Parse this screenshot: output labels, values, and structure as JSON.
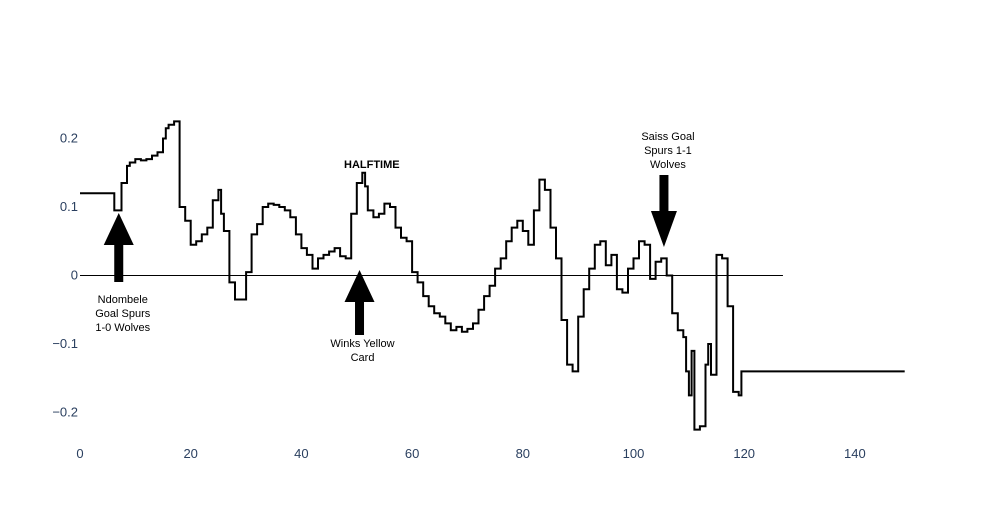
{
  "chart_data": {
    "type": "line",
    "line_shape": "step",
    "title": "",
    "xlabel": "",
    "ylabel": "",
    "xlim": [
      0,
      150
    ],
    "ylim": [
      -0.25,
      0.3
    ],
    "x_ticks": [
      0,
      20,
      40,
      60,
      80,
      100,
      120,
      140
    ],
    "x_tick_labels": [
      "0",
      "20",
      "40",
      "60",
      "80",
      "100",
      "120",
      "140"
    ],
    "y_ticks": [
      -0.2,
      -0.1,
      0,
      0.1,
      0.2
    ],
    "y_tick_labels": [
      "−0.2",
      "−0.1",
      "0",
      "0.1",
      "0.2"
    ],
    "grid": false,
    "line_color": "#000000",
    "zero_line": {
      "y": 0,
      "x_end": 127
    },
    "series": [
      {
        "x": [
          0,
          6,
          6.2,
          7,
          7.5,
          8,
          8.5,
          9,
          10,
          11,
          12,
          13,
          14,
          15,
          15.5,
          16,
          17,
          18,
          19,
          20,
          21,
          22,
          23,
          24,
          25,
          25.5,
          26,
          27,
          28,
          29,
          30,
          31,
          32,
          33,
          34,
          35,
          36,
          37,
          38,
          39,
          40,
          41,
          42,
          43,
          44,
          45,
          46,
          47,
          48,
          49,
          50,
          51,
          51.5,
          52,
          53,
          54,
          55,
          56,
          57,
          58,
          59,
          60,
          61,
          62,
          63,
          64,
          65,
          66,
          67,
          68,
          69,
          70,
          71,
          72,
          73,
          74,
          75,
          76,
          77,
          78,
          79,
          80,
          81,
          82,
          83,
          84,
          85,
          86,
          87,
          88,
          89,
          90,
          91,
          92,
          93,
          94,
          95,
          96,
          97,
          98,
          99,
          100,
          101,
          102,
          103,
          104,
          105,
          106,
          107,
          108,
          109,
          109.5,
          110,
          110.5,
          111,
          112,
          113,
          113.5,
          114,
          115,
          116,
          117,
          118,
          119,
          119.5,
          120,
          149
        ],
        "y": [
          0.12,
          0.12,
          0.095,
          0.095,
          0.135,
          0.135,
          0.16,
          0.165,
          0.17,
          0.168,
          0.17,
          0.175,
          0.18,
          0.2,
          0.215,
          0.22,
          0.225,
          0.1,
          0.08,
          0.045,
          0.05,
          0.06,
          0.07,
          0.11,
          0.125,
          0.09,
          0.065,
          -0.01,
          -0.035,
          -0.035,
          0.005,
          0.06,
          0.075,
          0.1,
          0.105,
          0.103,
          0.1,
          0.095,
          0.085,
          0.06,
          0.04,
          0.03,
          0.01,
          0.025,
          0.03,
          0.035,
          0.04,
          0.028,
          0.025,
          0.09,
          0.135,
          0.15,
          0.13,
          0.095,
          0.085,
          0.09,
          0.105,
          0.1,
          0.07,
          0.055,
          0.05,
          0.005,
          -0.01,
          -0.03,
          -0.045,
          -0.055,
          -0.06,
          -0.07,
          -0.08,
          -0.075,
          -0.082,
          -0.078,
          -0.07,
          -0.05,
          -0.03,
          -0.015,
          0.01,
          0.025,
          0.05,
          0.07,
          0.08,
          0.065,
          0.045,
          0.095,
          0.14,
          0.125,
          0.07,
          0.025,
          -0.065,
          -0.13,
          -0.14,
          -0.06,
          -0.02,
          0.01,
          0.045,
          0.05,
          0.015,
          0.03,
          -0.02,
          -0.025,
          0.01,
          0.025,
          0.05,
          0.045,
          -0.005,
          0.02,
          0.025,
          0.0,
          -0.055,
          -0.08,
          -0.09,
          -0.14,
          -0.175,
          -0.11,
          -0.225,
          -0.22,
          -0.13,
          -0.1,
          -0.145,
          0.03,
          0.025,
          -0.045,
          -0.17,
          -0.175,
          -0.14,
          -0.14,
          -0.14
        ]
      }
    ],
    "annotations": [
      {
        "text_lines": [
          "Ndombele",
          "Goal Spurs",
          "1-0 Wolves"
        ],
        "x": 7,
        "arrow": "up"
      },
      {
        "text_lines": [
          "Winks Yellow",
          "Card"
        ],
        "x": 50.5,
        "arrow": "up"
      },
      {
        "text_lines": [
          "HALFTIME"
        ],
        "x": 52,
        "arrow": "none",
        "bold": true
      },
      {
        "text_lines": [
          "Saiss Goal",
          "Spurs 1-1",
          "Wolves"
        ],
        "x": 105.5,
        "arrow": "down"
      }
    ]
  }
}
